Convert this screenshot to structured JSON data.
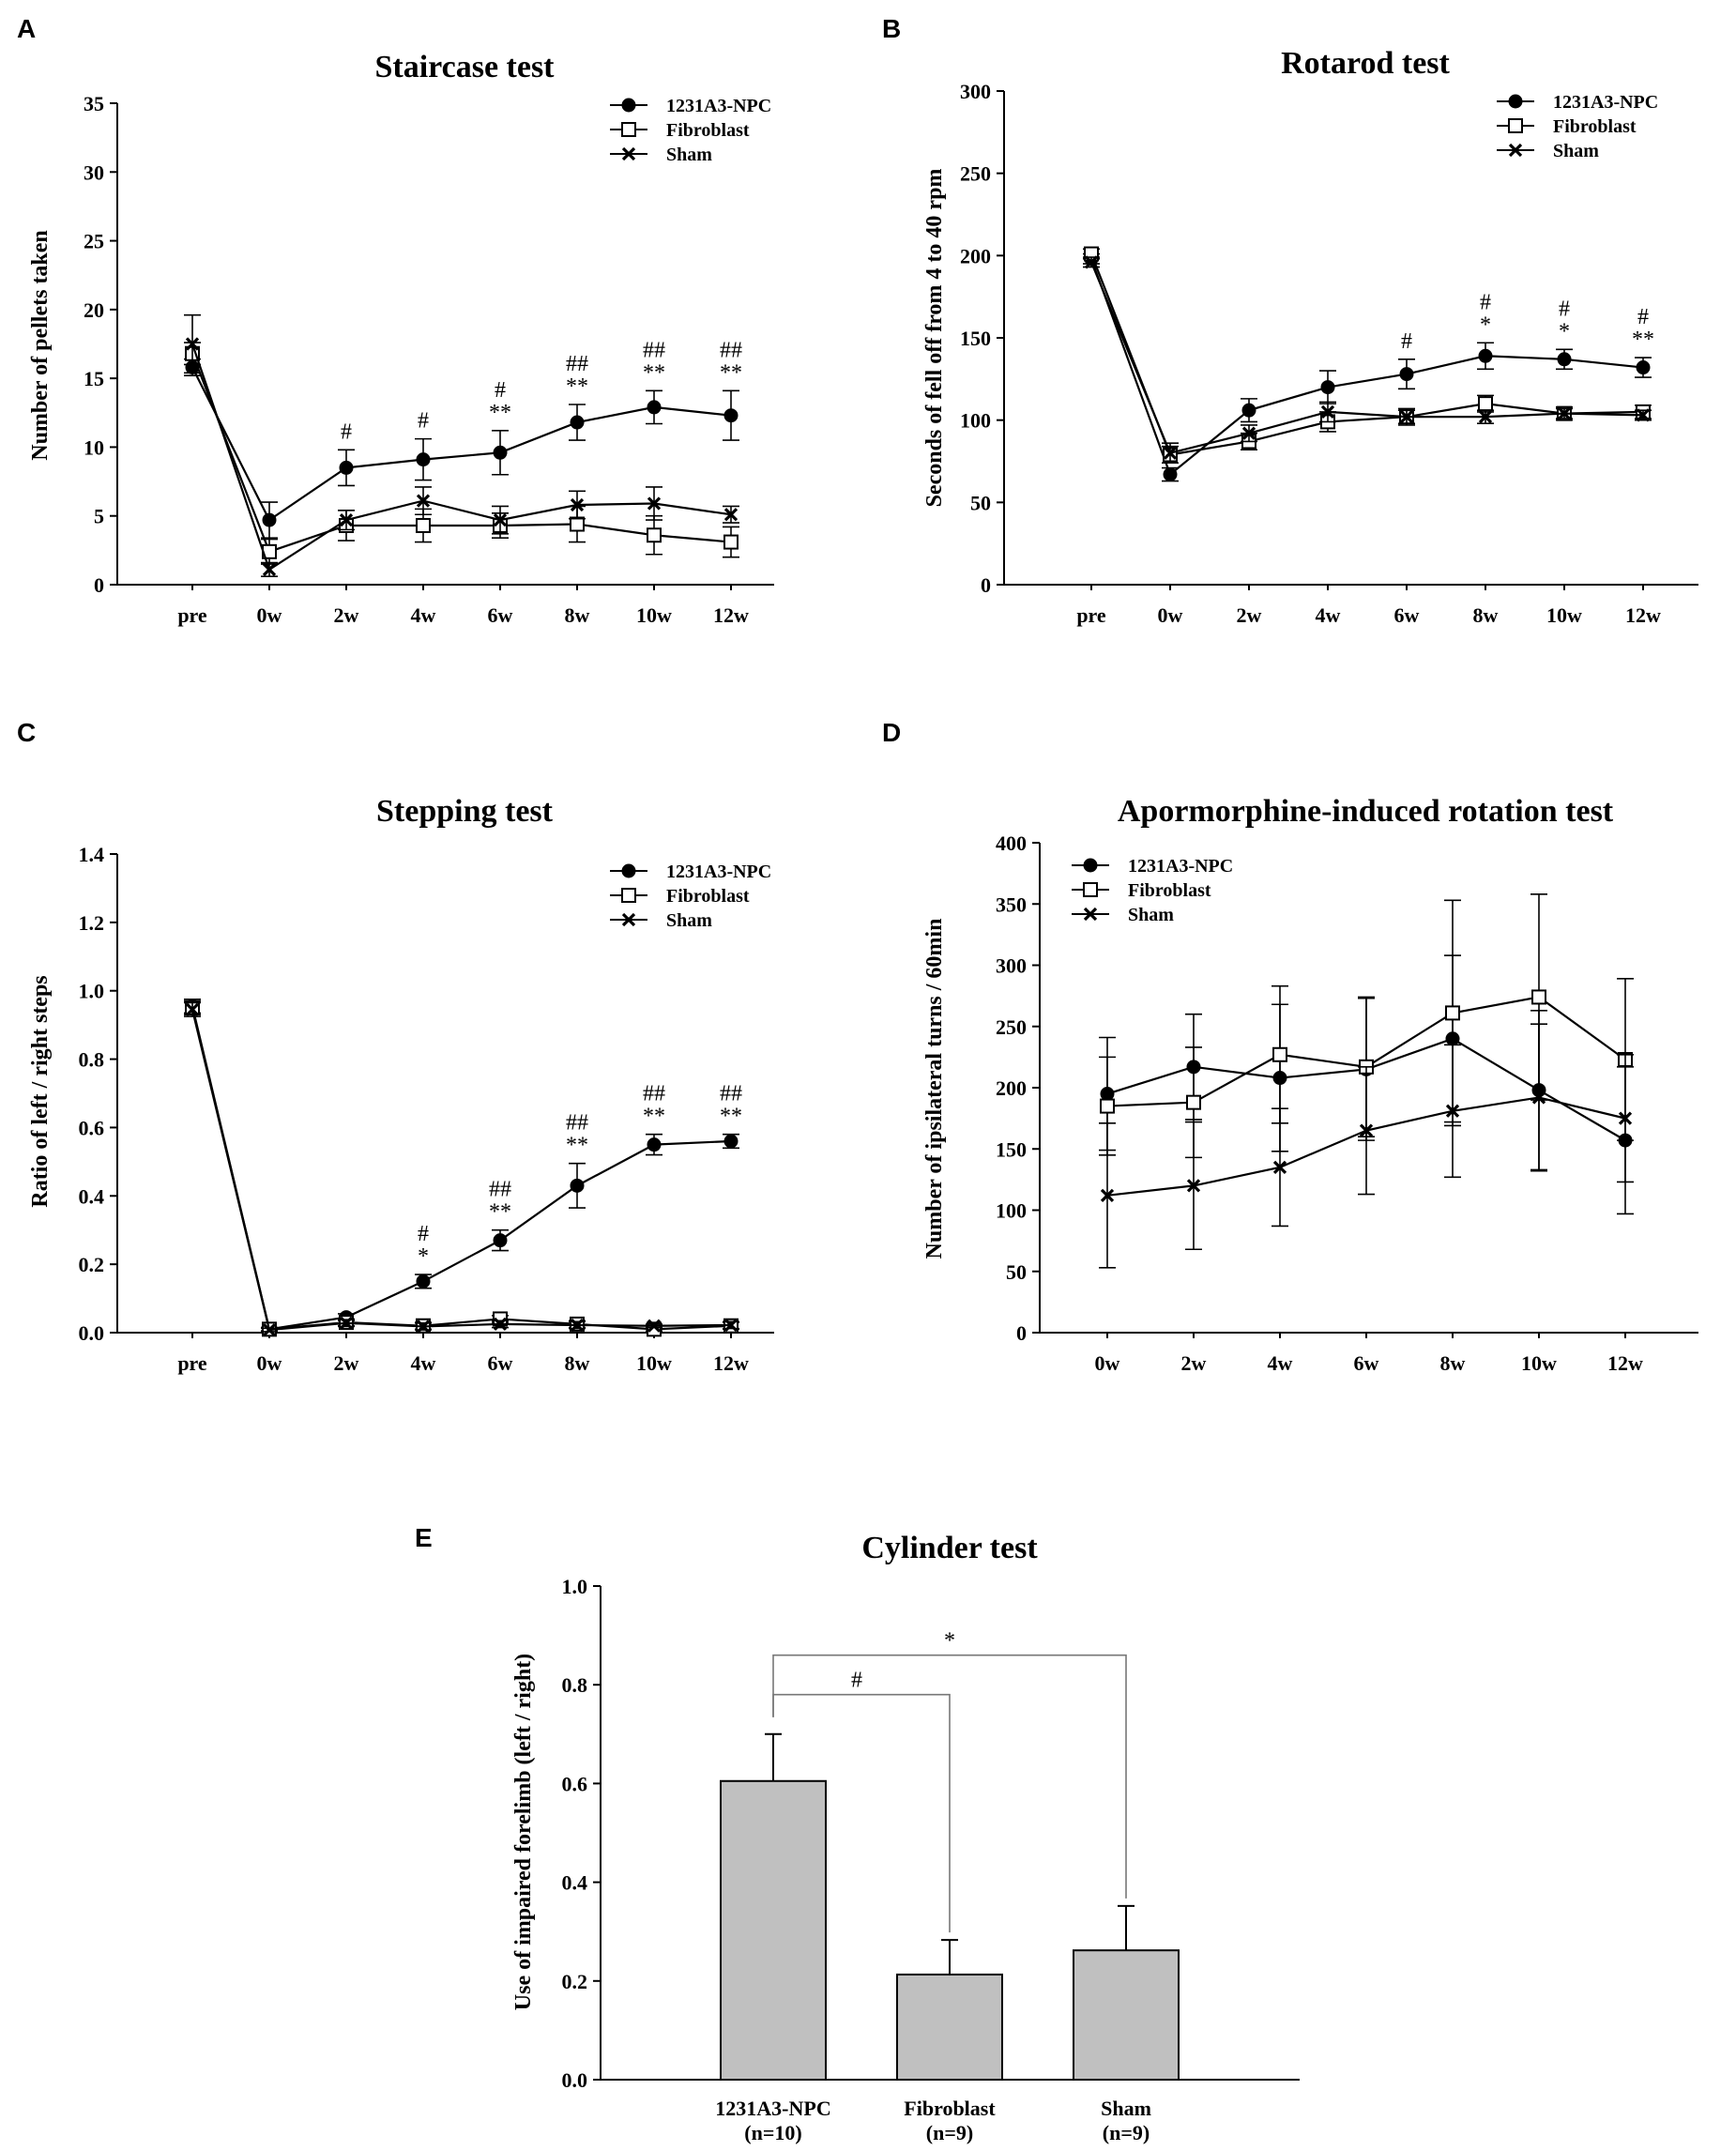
{
  "chart_data": [
    {
      "panel": "A",
      "type": "line",
      "title": "Staircase test",
      "ylabel": "Number of pellets taken",
      "xlabel": "",
      "categories": [
        "pre",
        "0w",
        "2w",
        "4w",
        "6w",
        "8w",
        "10w",
        "12w"
      ],
      "yticks": [
        "0",
        "5",
        "10",
        "15",
        "20",
        "25",
        "30",
        "35"
      ],
      "ylim": [
        0,
        35
      ],
      "legend_position": "top-right",
      "series": [
        {
          "name": "1231A3-NPC",
          "marker": "filled-circle",
          "values": [
            15.8,
            4.7,
            8.5,
            9.1,
            9.6,
            11.8,
            12.9,
            12.3
          ],
          "errors": [
            0.6,
            1.3,
            1.3,
            1.5,
            1.6,
            1.3,
            1.2,
            1.8
          ]
        },
        {
          "name": "Fibroblast",
          "marker": "open-square",
          "values": [
            16.8,
            2.4,
            4.3,
            4.3,
            4.3,
            4.4,
            3.6,
            3.1
          ],
          "errors": [
            0.8,
            0.9,
            1.1,
            1.2,
            0.9,
            1.3,
            1.4,
            1.1
          ]
        },
        {
          "name": "Sham",
          "marker": "x",
          "values": [
            17.5,
            1.1,
            4.7,
            6.1,
            4.7,
            5.8,
            5.9,
            5.1
          ],
          "errors": [
            2.1,
            0.5,
            0.7,
            1.0,
            1.0,
            1.0,
            1.2,
            0.6
          ]
        }
      ],
      "annotations": [
        {
          "index": 2,
          "lines": [
            "#"
          ]
        },
        {
          "index": 3,
          "lines": [
            "#"
          ]
        },
        {
          "index": 4,
          "lines": [
            "#",
            "**"
          ]
        },
        {
          "index": 5,
          "lines": [
            "##",
            "**"
          ]
        },
        {
          "index": 6,
          "lines": [
            "##",
            "**"
          ]
        },
        {
          "index": 7,
          "lines": [
            "##",
            "**"
          ]
        }
      ]
    },
    {
      "panel": "B",
      "type": "line",
      "title": "Rotarod test",
      "ylabel": "Seconds of fell off from 4 to 40 rpm",
      "xlabel": "",
      "categories": [
        "pre",
        "0w",
        "2w",
        "4w",
        "6w",
        "8w",
        "10w",
        "12w"
      ],
      "yticks": [
        "0",
        "50",
        "100",
        "150",
        "200",
        "250",
        "300"
      ],
      "ylim": [
        0,
        300
      ],
      "legend_position": "top-right",
      "series": [
        {
          "name": "1231A3-NPC",
          "marker": "filled-circle",
          "values": [
            198,
            67,
            106,
            120,
            128,
            139,
            137,
            132
          ],
          "errors": [
            3,
            4,
            7,
            10,
            9,
            8,
            6,
            6
          ]
        },
        {
          "name": "Fibroblast",
          "marker": "open-square",
          "values": [
            201,
            79,
            87,
            99,
            102,
            110,
            104,
            105
          ],
          "errors": [
            3,
            5,
            5,
            6,
            5,
            5,
            4,
            4
          ]
        },
        {
          "name": "Sham",
          "marker": "x",
          "values": [
            196,
            80,
            92,
            105,
            102,
            102,
            104,
            103
          ],
          "errors": [
            3,
            6,
            5,
            6,
            4,
            4,
            3,
            3
          ]
        }
      ],
      "annotations": [
        {
          "index": 4,
          "lines": [
            "#"
          ]
        },
        {
          "index": 5,
          "lines": [
            "#",
            "*"
          ]
        },
        {
          "index": 6,
          "lines": [
            "#",
            "*"
          ]
        },
        {
          "index": 7,
          "lines": [
            "#",
            "**"
          ]
        }
      ]
    },
    {
      "panel": "C",
      "type": "line",
      "title": "Stepping test",
      "ylabel": "Ratio of left / right steps",
      "xlabel": "",
      "categories": [
        "pre",
        "0w",
        "2w",
        "4w",
        "6w",
        "8w",
        "10w",
        "12w"
      ],
      "yticks": [
        "0.0",
        "0.2",
        "0.4",
        "0.6",
        "0.8",
        "1.0",
        "1.2",
        "1.4"
      ],
      "ylim": [
        0,
        1.4
      ],
      "legend_position": "top-right",
      "series": [
        {
          "name": "1231A3-NPC",
          "marker": "filled-circle",
          "values": [
            0.955,
            0.01,
            0.045,
            0.15,
            0.27,
            0.43,
            0.55,
            0.56
          ],
          "errors": [
            0.02,
            0.005,
            0.01,
            0.02,
            0.03,
            0.065,
            0.03,
            0.02
          ]
        },
        {
          "name": "Fibroblast",
          "marker": "open-square",
          "values": [
            0.95,
            0.01,
            0.03,
            0.02,
            0.04,
            0.025,
            0.01,
            0.02
          ],
          "errors": [
            0.02,
            0.005,
            0.01,
            0.01,
            0.01,
            0.01,
            0.005,
            0.01
          ]
        },
        {
          "name": "Sham",
          "marker": "x",
          "values": [
            0.945,
            0.008,
            0.028,
            0.018,
            0.025,
            0.022,
            0.02,
            0.022
          ],
          "errors": [
            0.02,
            0.005,
            0.01,
            0.01,
            0.01,
            0.01,
            0.005,
            0.01
          ]
        }
      ],
      "annotations": [
        {
          "index": 3,
          "lines": [
            "#",
            "*"
          ]
        },
        {
          "index": 4,
          "lines": [
            "##",
            "**"
          ]
        },
        {
          "index": 5,
          "lines": [
            "##",
            "**"
          ]
        },
        {
          "index": 6,
          "lines": [
            "##",
            "**"
          ]
        },
        {
          "index": 7,
          "lines": [
            "##",
            "**"
          ]
        }
      ]
    },
    {
      "panel": "D",
      "type": "line",
      "title": "Apormorphine-induced rotation test",
      "ylabel": "Number of ipsilateral turns / 60min",
      "xlabel": "",
      "categories": [
        "0w",
        "2w",
        "4w",
        "6w",
        "8w",
        "10w",
        "12w"
      ],
      "yticks": [
        "0",
        "50",
        "100",
        "150",
        "200",
        "250",
        "300",
        "350",
        "400"
      ],
      "ylim": [
        0,
        400
      ],
      "legend_position": "top-left",
      "series": [
        {
          "name": "1231A3-NPC",
          "marker": "filled-circle",
          "values": [
            195,
            217,
            208,
            215,
            240,
            198,
            157
          ],
          "errors": [
            46,
            43,
            60,
            58,
            68,
            65,
            60
          ]
        },
        {
          "name": "Fibroblast",
          "marker": "open-square",
          "values": [
            185,
            188,
            227,
            217,
            261,
            274,
            223
          ],
          "errors": [
            40,
            45,
            56,
            57,
            92,
            84,
            66
          ]
        },
        {
          "name": "Sham",
          "marker": "x",
          "values": [
            112,
            120,
            135,
            165,
            181,
            192,
            175
          ],
          "errors": [
            59,
            52,
            48,
            52,
            54,
            60,
            52
          ]
        }
      ],
      "annotations": []
    },
    {
      "panel": "E",
      "type": "bar",
      "title": "Cylinder test",
      "ylabel": "Use of impaired forelimb (left / right)",
      "xlabel": "",
      "categories": [
        "1231A3-NPC",
        "Fibroblast",
        "Sham"
      ],
      "category_sublabels": [
        "(n=10)",
        "(n=9)",
        "(n=9)"
      ],
      "values": [
        0.605,
        0.213,
        0.262
      ],
      "errors": [
        0.095,
        0.07,
        0.09
      ],
      "yticks": [
        "0.0",
        "0.2",
        "0.4",
        "0.6",
        "0.8",
        "1.0"
      ],
      "ylim": [
        0,
        1.0
      ],
      "bar_color": "#c0c0c0",
      "brackets": [
        {
          "from": 0,
          "to": 1,
          "label": "#",
          "y": 0.78
        },
        {
          "from": 0,
          "to": 2,
          "label": "*",
          "y": 0.86
        }
      ]
    }
  ]
}
